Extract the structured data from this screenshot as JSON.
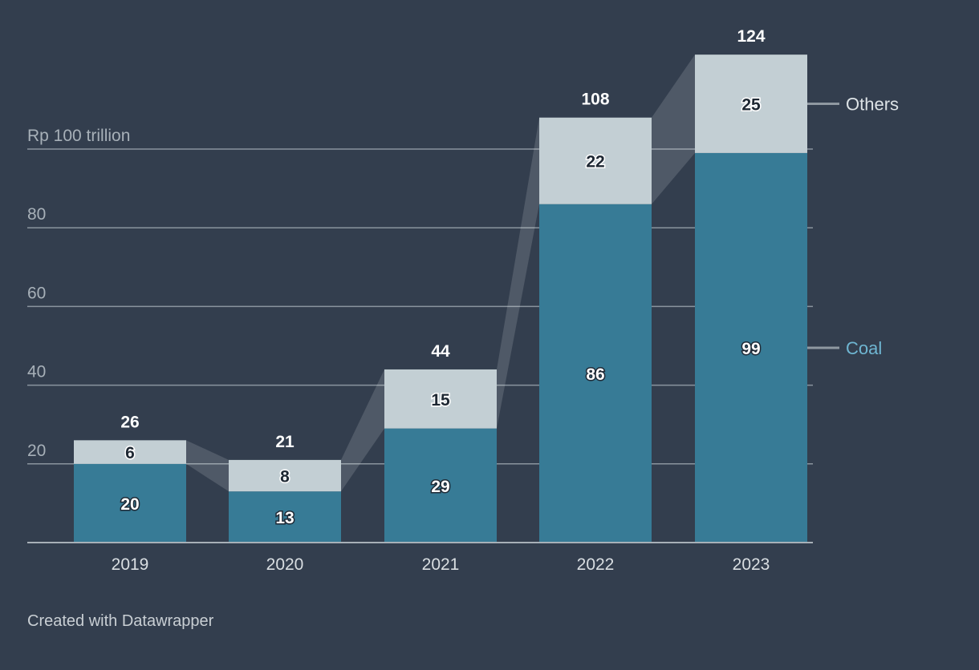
{
  "chart_data": {
    "type": "bar",
    "stacked": true,
    "categories": [
      "2019",
      "2020",
      "2021",
      "2022",
      "2023"
    ],
    "series": [
      {
        "name": "Coal",
        "values": [
          20,
          13,
          29,
          86,
          99
        ],
        "color": "#377b96"
      },
      {
        "name": "Others",
        "values": [
          6,
          8,
          15,
          22,
          25
        ],
        "color": "#c3cfd4"
      }
    ],
    "totals": [
      26,
      21,
      44,
      108,
      124
    ],
    "y_ticks": [
      20,
      40,
      60,
      80,
      100
    ],
    "y_tick_labels": [
      "20",
      "40",
      "60",
      "80",
      "Rp 100 trillion"
    ],
    "ylim": [
      0,
      124
    ],
    "grid": true,
    "legend_position": "right",
    "legend_colors": {
      "Others": "#dde3e6",
      "Coal": "#6fb6d2"
    },
    "connector_color": "#ffffff",
    "title": "",
    "xlabel": "",
    "ylabel": ""
  },
  "footer": {
    "credit": "Created with Datawrapper"
  }
}
